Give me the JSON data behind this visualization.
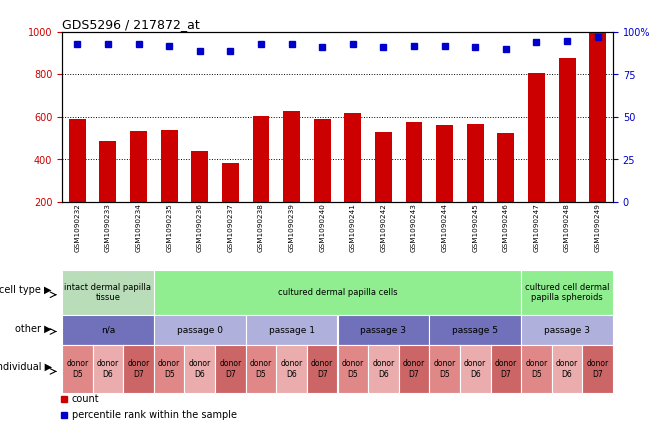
{
  "title": "GDS5296 / 217872_at",
  "samples": [
    "GSM1090232",
    "GSM1090233",
    "GSM1090234",
    "GSM1090235",
    "GSM1090236",
    "GSM1090237",
    "GSM1090238",
    "GSM1090239",
    "GSM1090240",
    "GSM1090241",
    "GSM1090242",
    "GSM1090243",
    "GSM1090244",
    "GSM1090245",
    "GSM1090246",
    "GSM1090247",
    "GSM1090248",
    "GSM1090249"
  ],
  "counts": [
    590,
    487,
    534,
    539,
    439,
    385,
    607,
    630,
    590,
    618,
    530,
    575,
    560,
    568,
    525,
    808,
    877,
    995
  ],
  "percentiles": [
    93,
    93,
    93,
    92,
    89,
    89,
    93,
    93,
    91,
    93,
    91,
    92,
    92,
    91,
    90,
    94,
    95,
    97
  ],
  "ylim_left": [
    200,
    1000
  ],
  "ylim_right": [
    0,
    100
  ],
  "yticks_left": [
    200,
    400,
    600,
    800,
    1000
  ],
  "yticks_right": [
    0,
    25,
    50,
    75,
    100
  ],
  "bar_color": "#cc0000",
  "dot_color": "#0000cc",
  "cell_type_groups": [
    {
      "label": "intact dermal papilla\ntissue",
      "start": 0,
      "end": 3,
      "color": "#b8ddb8"
    },
    {
      "label": "cultured dermal papilla cells",
      "start": 3,
      "end": 15,
      "color": "#90ee90"
    },
    {
      "label": "cultured cell dermal\npapilla spheroids",
      "start": 15,
      "end": 18,
      "color": "#90ee90"
    }
  ],
  "other_groups": [
    {
      "label": "n/a",
      "start": 0,
      "end": 3,
      "color": "#7070bb"
    },
    {
      "label": "passage 0",
      "start": 3,
      "end": 6,
      "color": "#b0b0dd"
    },
    {
      "label": "passage 1",
      "start": 6,
      "end": 9,
      "color": "#b0b0dd"
    },
    {
      "label": "passage 3",
      "start": 9,
      "end": 12,
      "color": "#7070bb"
    },
    {
      "label": "passage 5",
      "start": 12,
      "end": 15,
      "color": "#7070bb"
    },
    {
      "label": "passage 3",
      "start": 15,
      "end": 18,
      "color": "#b0b0dd"
    }
  ],
  "individual_groups": [
    {
      "label": "donor\nD5",
      "start": 0,
      "end": 1,
      "color": "#e08888"
    },
    {
      "label": "donor\nD6",
      "start": 1,
      "end": 2,
      "color": "#eaacac"
    },
    {
      "label": "donor\nD7",
      "start": 2,
      "end": 3,
      "color": "#cc6666"
    },
    {
      "label": "donor\nD5",
      "start": 3,
      "end": 4,
      "color": "#e08888"
    },
    {
      "label": "donor\nD6",
      "start": 4,
      "end": 5,
      "color": "#eaacac"
    },
    {
      "label": "donor\nD7",
      "start": 5,
      "end": 6,
      "color": "#cc6666"
    },
    {
      "label": "donor\nD5",
      "start": 6,
      "end": 7,
      "color": "#e08888"
    },
    {
      "label": "donor\nD6",
      "start": 7,
      "end": 8,
      "color": "#eaacac"
    },
    {
      "label": "donor\nD7",
      "start": 8,
      "end": 9,
      "color": "#cc6666"
    },
    {
      "label": "donor\nD5",
      "start": 9,
      "end": 10,
      "color": "#e08888"
    },
    {
      "label": "donor\nD6",
      "start": 10,
      "end": 11,
      "color": "#eaacac"
    },
    {
      "label": "donor\nD7",
      "start": 11,
      "end": 12,
      "color": "#cc6666"
    },
    {
      "label": "donor\nD5",
      "start": 12,
      "end": 13,
      "color": "#e08888"
    },
    {
      "label": "donor\nD6",
      "start": 13,
      "end": 14,
      "color": "#eaacac"
    },
    {
      "label": "donor\nD7",
      "start": 14,
      "end": 15,
      "color": "#cc6666"
    },
    {
      "label": "donor\nD5",
      "start": 15,
      "end": 16,
      "color": "#e08888"
    },
    {
      "label": "donor\nD6",
      "start": 16,
      "end": 17,
      "color": "#eaacac"
    },
    {
      "label": "donor\nD7",
      "start": 17,
      "end": 18,
      "color": "#cc6666"
    }
  ],
  "legend_count_color": "#cc0000",
  "legend_pct_color": "#0000cc",
  "bg_color": "#ffffff",
  "tick_label_color_left": "#cc0000",
  "tick_label_color_right": "#0000cc"
}
